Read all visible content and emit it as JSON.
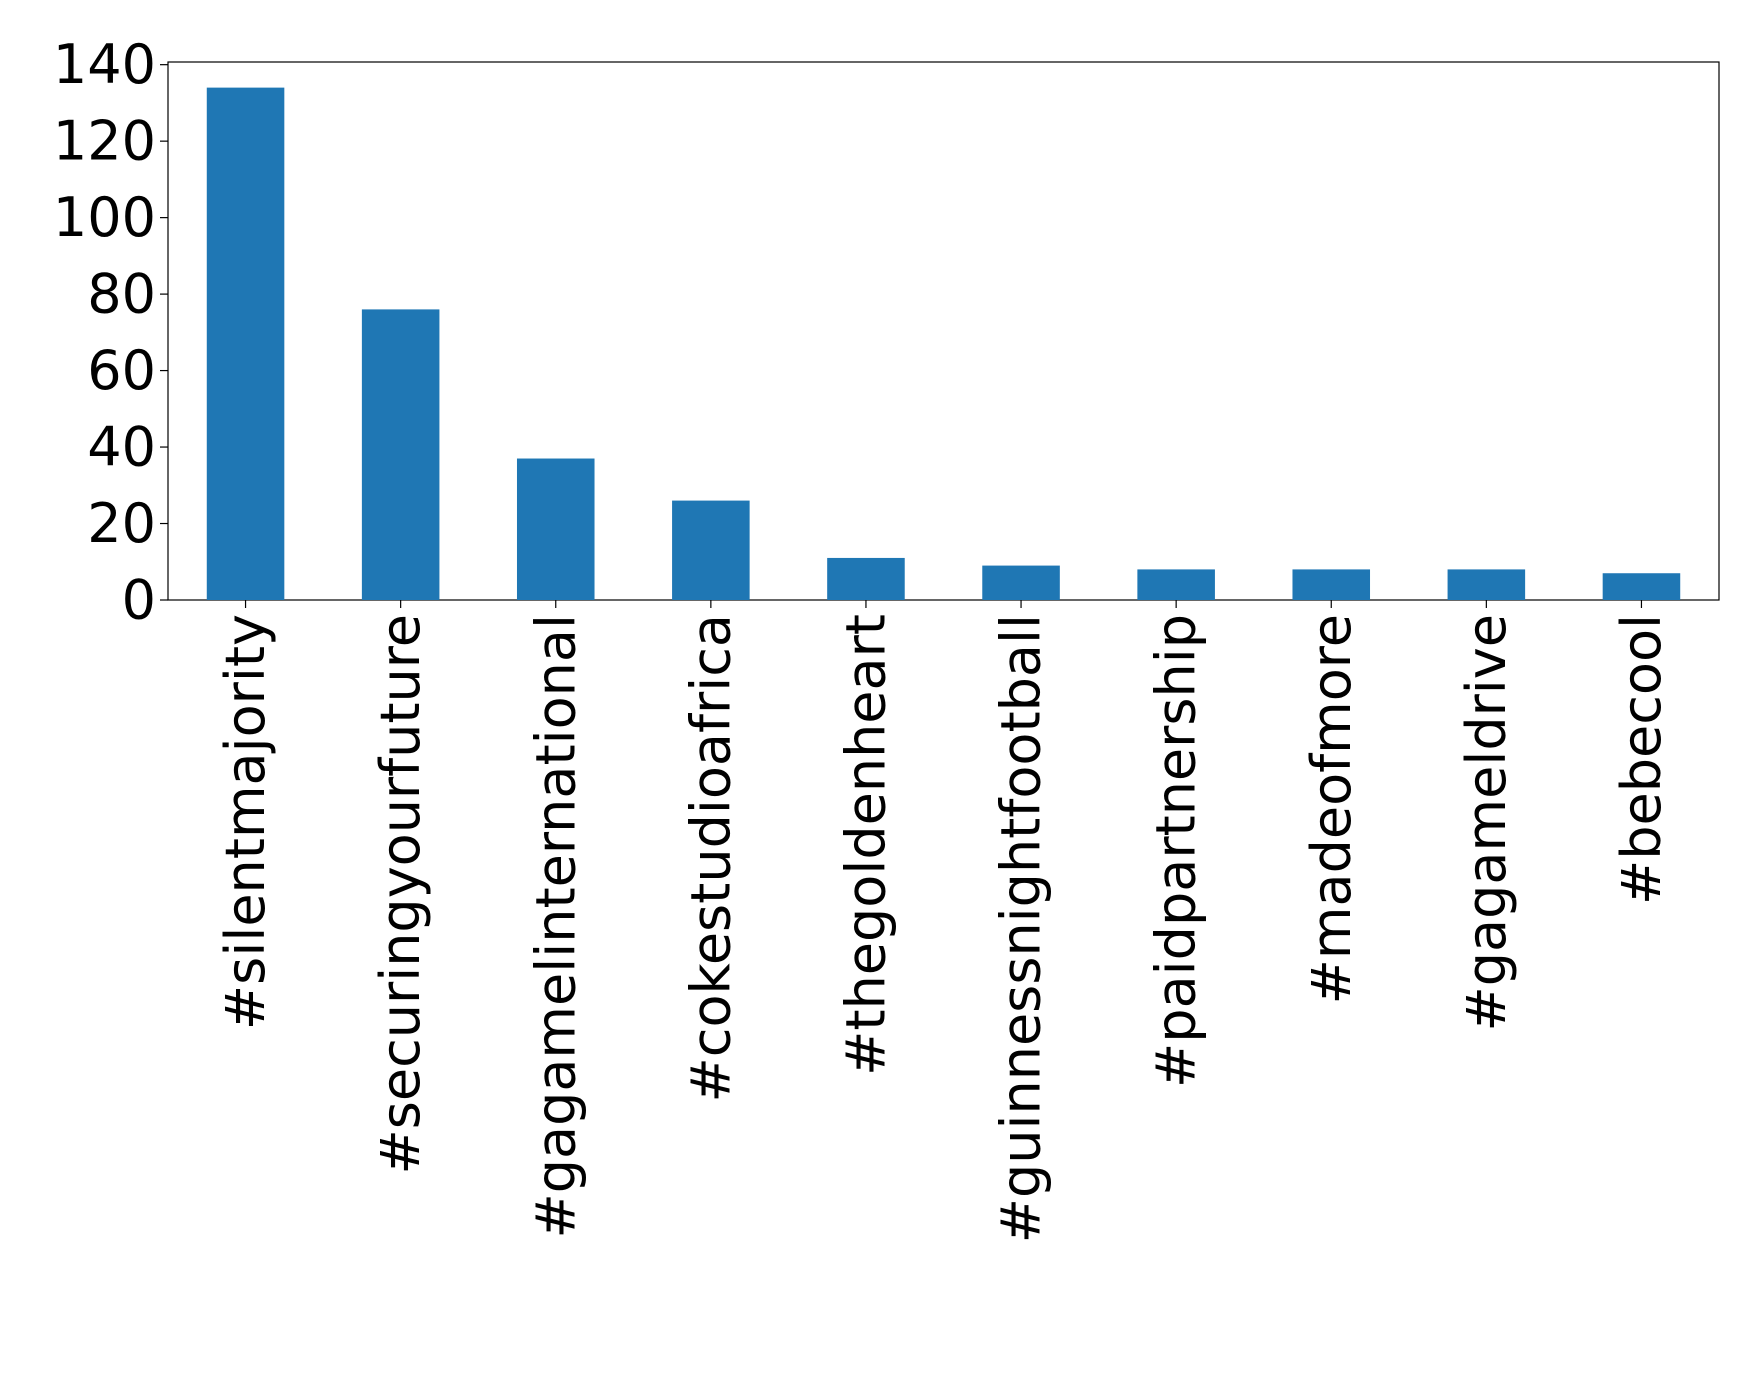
{
  "chart_data": {
    "type": "bar",
    "categories": [
      "#silentmajority",
      "#securingyourfuture",
      "#gagamelinternational",
      "#cokestudioafrica",
      "#thegoldenheart",
      "#guinnessnightfootball",
      "#paidpartnership",
      "#madeofmore",
      "#gagameldrive",
      "#bebecool"
    ],
    "values": [
      134,
      76,
      37,
      26,
      11,
      9,
      8,
      8,
      8,
      7
    ],
    "color": "#1f77b4",
    "ylim": [
      0,
      140.7
    ],
    "yticks": [
      0,
      20,
      40,
      60,
      80,
      100,
      120,
      140
    ],
    "grid": false
  }
}
